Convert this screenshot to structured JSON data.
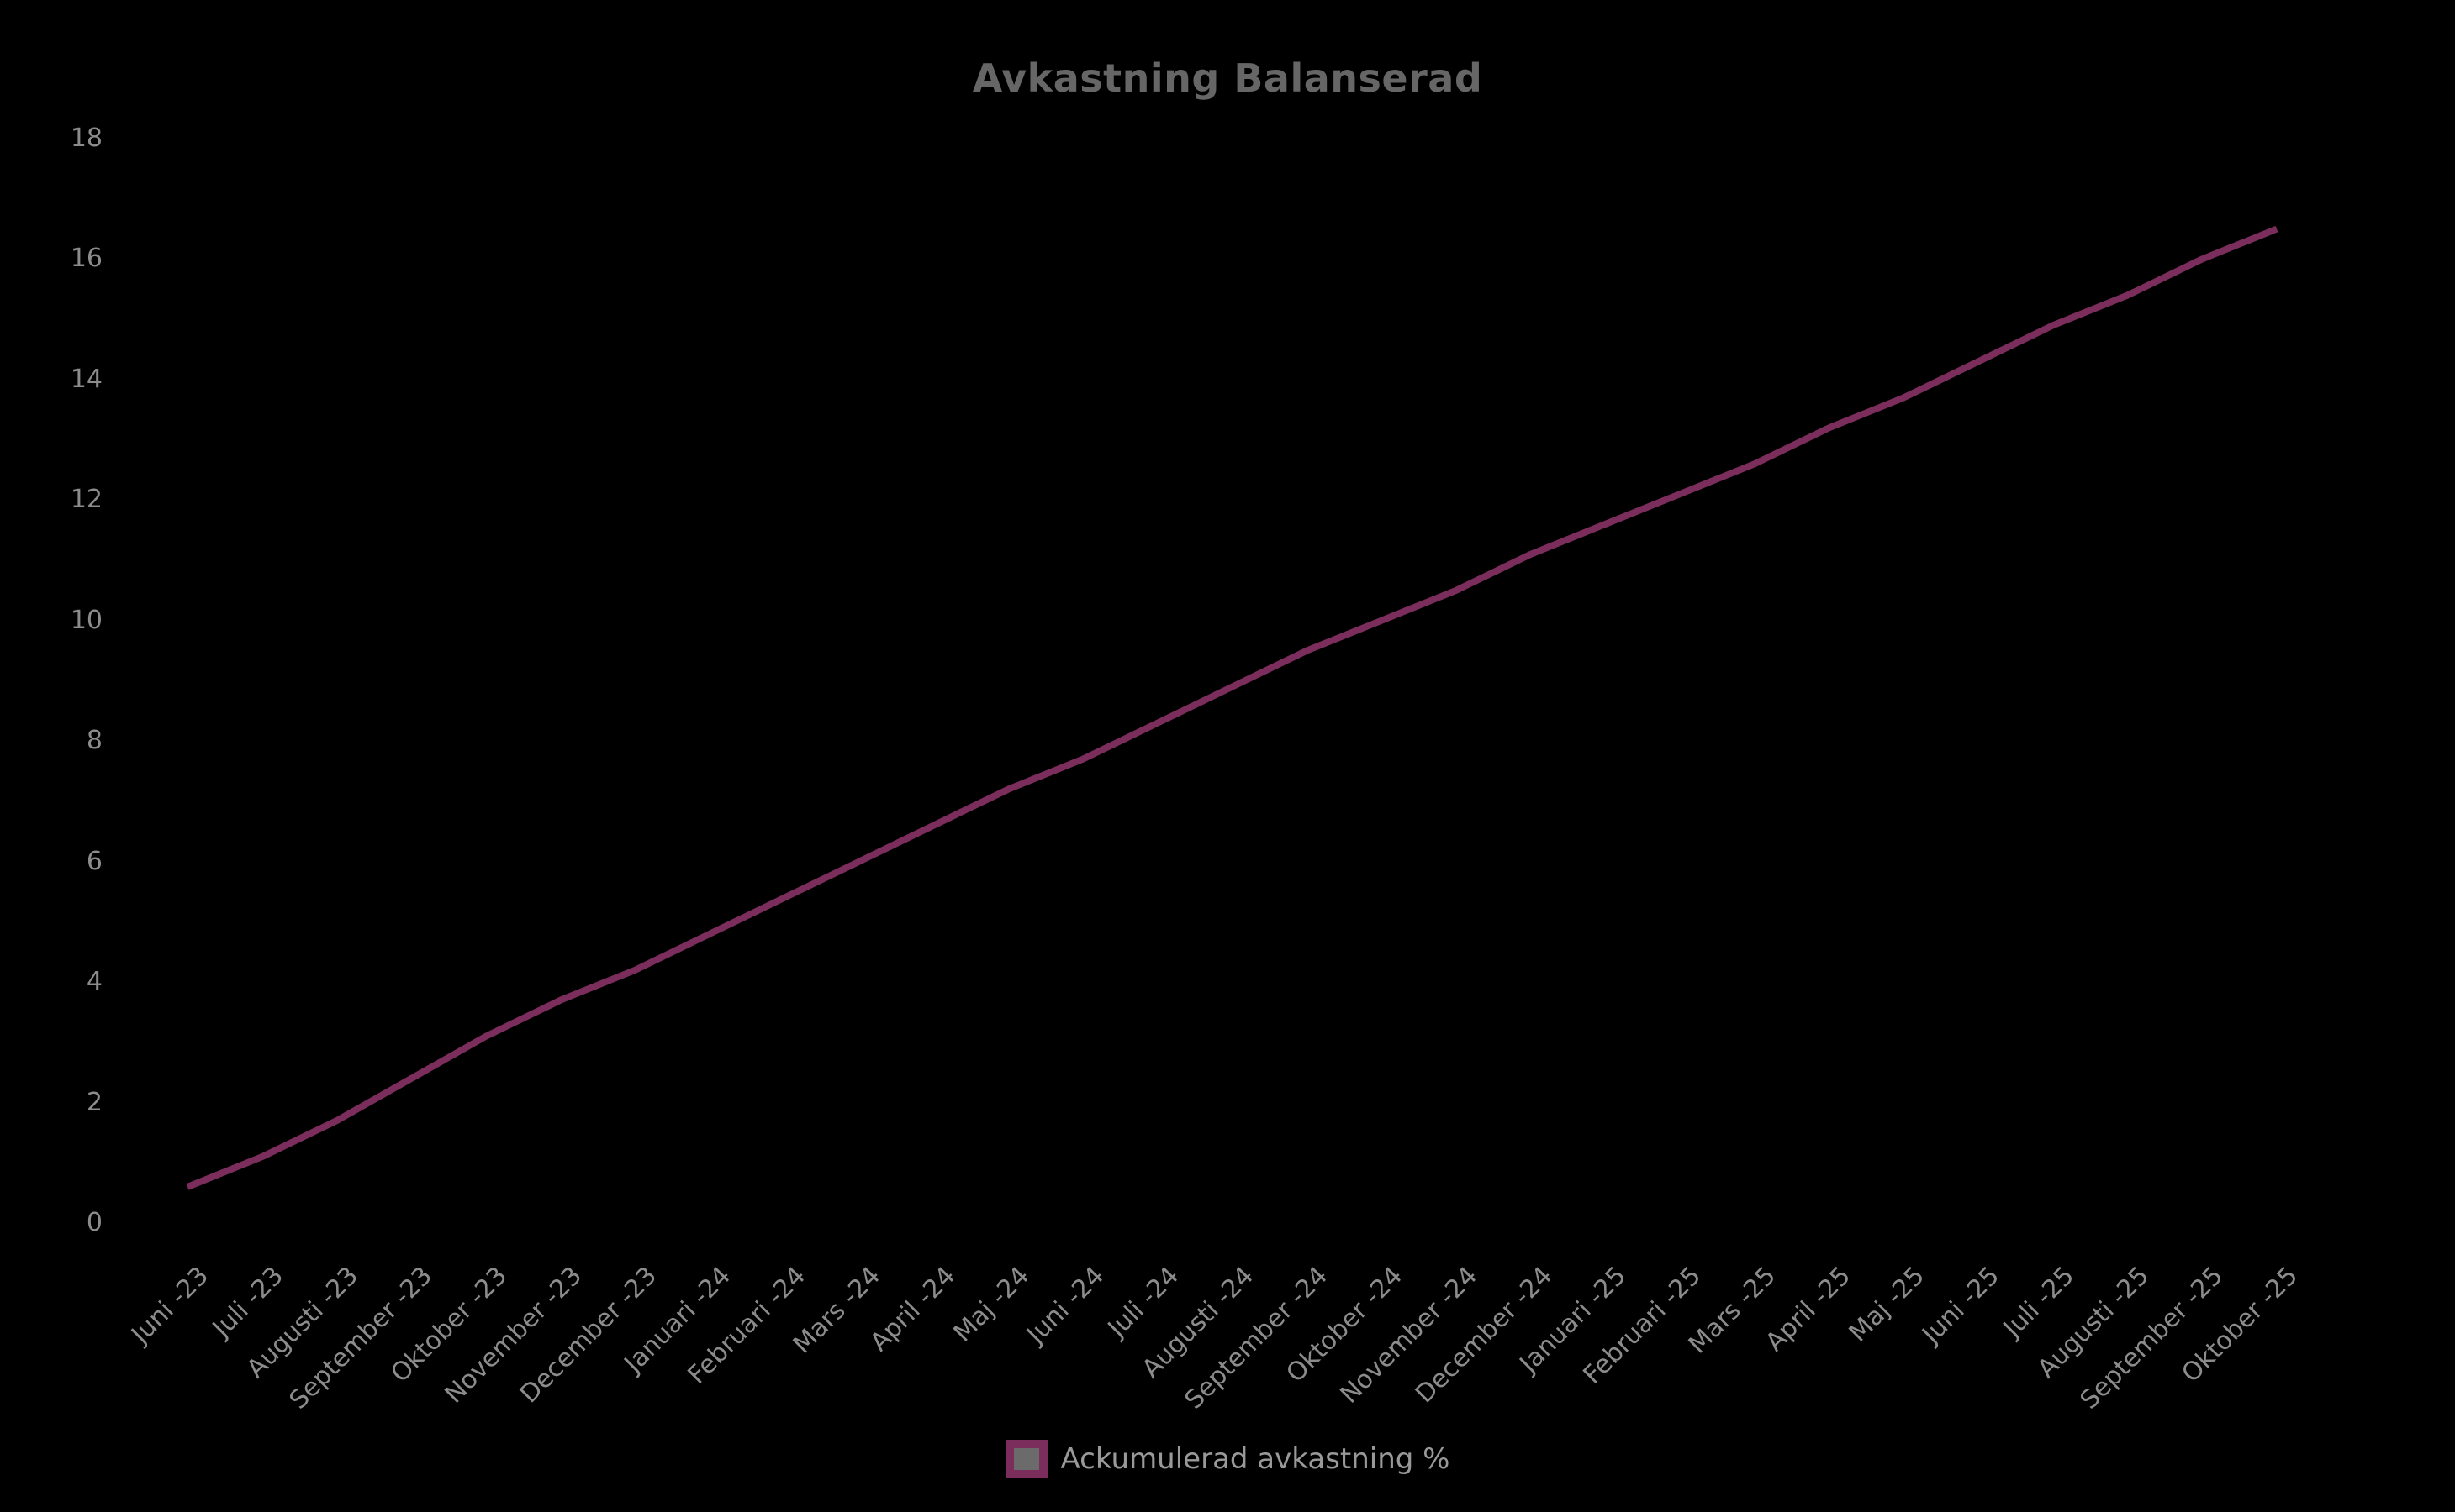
{
  "chart_data": {
    "type": "line",
    "title": "Avkastning Balanserad",
    "categories": [
      "Juni -23",
      "Juli -23",
      "Augusti -23",
      "September -23",
      "Oktober -23",
      "November -23",
      "December -23",
      "Januari -24",
      "Februari -24",
      "Mars -24",
      "April -24",
      "Maj -24",
      "Juni -24",
      "Juli -24",
      "Augusti -24",
      "September -24",
      "Oktober -24",
      "November -24",
      "December -24",
      "Januari -25",
      "Februari -25",
      "Mars -25",
      "April -25",
      "Maj -25",
      "Juni -25",
      "Juli -25",
      "Augusti -25",
      "September -25",
      "Oktober -25"
    ],
    "series": [
      {
        "name": "Ackumulerad avkastning %",
        "values": [
          0.6,
          1.1,
          1.7,
          2.4,
          3.1,
          3.7,
          4.2,
          4.8,
          5.4,
          6.0,
          6.6,
          7.2,
          7.7,
          8.3,
          8.9,
          9.5,
          10.0,
          10.5,
          11.1,
          11.6,
          12.1,
          12.6,
          13.2,
          13.7,
          14.3,
          14.9,
          15.4,
          16.0,
          16.5
        ]
      }
    ],
    "xlabel": "",
    "ylabel": "",
    "ylim": [
      0,
      18
    ],
    "ytick_step": 2,
    "grid": false,
    "legend_position": "bottom",
    "colors": {
      "background": "#000000",
      "line": "#7B2D5C",
      "title_text": "#666666",
      "axis_text": "#8C8C8C",
      "legend_text": "#999999",
      "legend_swatch_fill": "#6B6B6B"
    }
  }
}
